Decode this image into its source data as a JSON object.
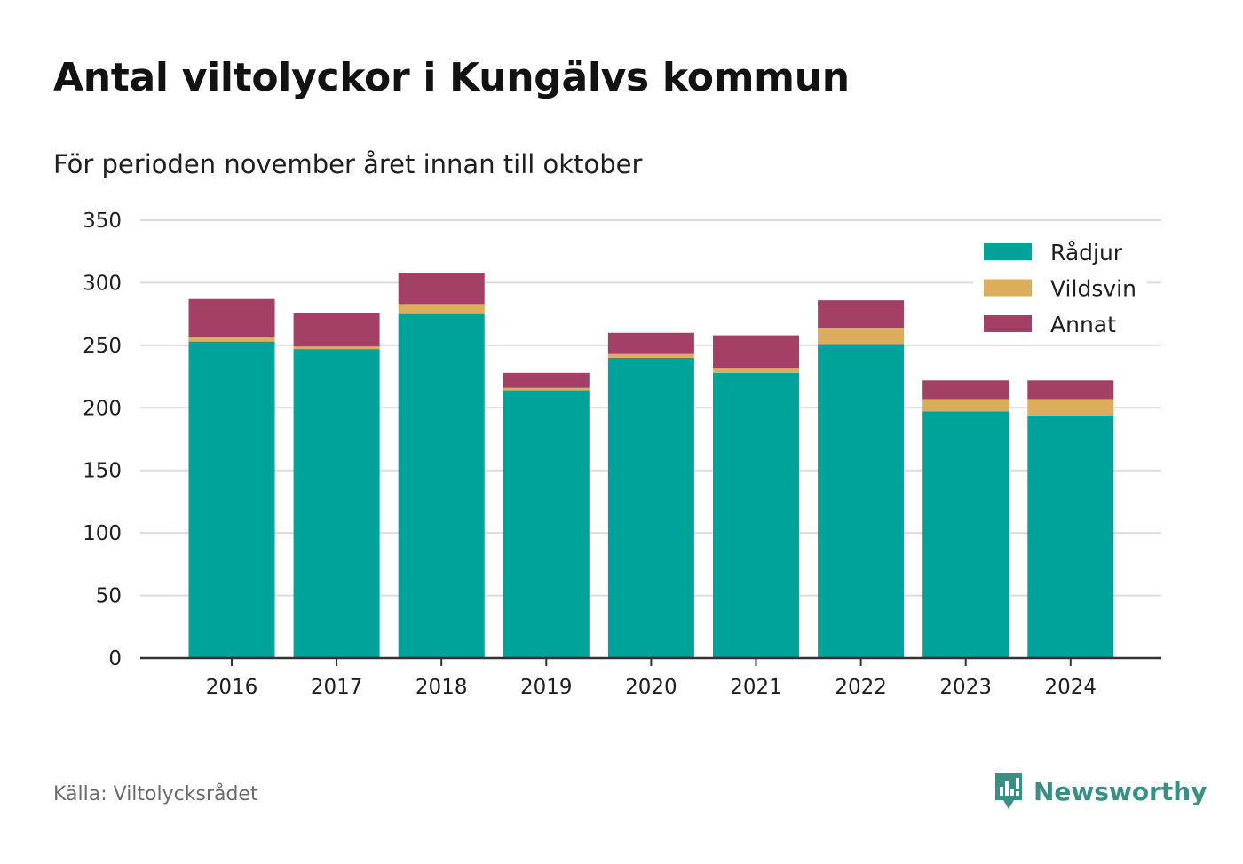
{
  "title": "Antal viltolyckor i Kungälvs kommun",
  "subtitle": "För perioden november året innan till oktober",
  "source": "Källa: Viltolycksrådet",
  "brand": {
    "name": "Newsworthy",
    "icon": "newsworthy-logo-icon",
    "color": "#3a8f84"
  },
  "chart_data": {
    "type": "bar",
    "stacked": true,
    "categories": [
      "2016",
      "2017",
      "2018",
      "2019",
      "2020",
      "2021",
      "2022",
      "2023",
      "2024"
    ],
    "series": [
      {
        "name": "Rådjur",
        "color": "#00a39a",
        "values": [
          253,
          247,
          275,
          214,
          240,
          228,
          251,
          197,
          194
        ]
      },
      {
        "name": "Vildsvin",
        "color": "#dbad5c",
        "values": [
          4,
          2,
          8,
          2,
          3,
          4,
          13,
          10,
          13
        ]
      },
      {
        "name": "Annat",
        "color": "#a43f66",
        "values": [
          30,
          27,
          25,
          12,
          17,
          26,
          22,
          15,
          15
        ]
      }
    ],
    "ylim": [
      0,
      350
    ],
    "yticks": [
      0,
      50,
      100,
      150,
      200,
      250,
      300,
      350
    ],
    "xlabel": "",
    "ylabel": "",
    "grid": true,
    "legend_position": "top-right"
  }
}
